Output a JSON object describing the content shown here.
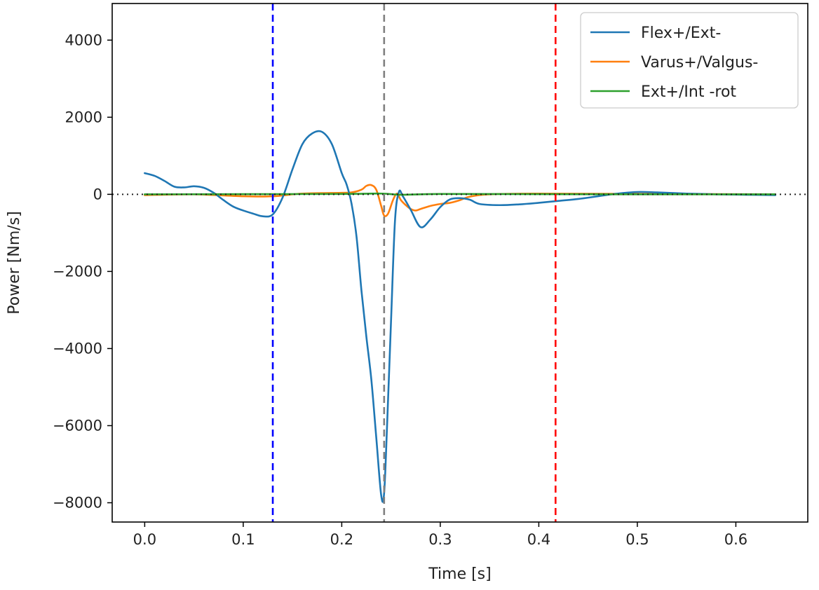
{
  "chart_data": {
    "type": "line",
    "title": "",
    "xlabel": "Time [s]",
    "ylabel": "Power [Nm/s]",
    "xlim": [
      -0.033,
      0.673
    ],
    "ylim": [
      -8500,
      4950
    ],
    "xticks": [
      0.0,
      0.1,
      0.2,
      0.3,
      0.4,
      0.5,
      0.6
    ],
    "xtick_labels": [
      "0.0",
      "0.1",
      "0.2",
      "0.3",
      "0.4",
      "0.5",
      "0.6"
    ],
    "yticks": [
      4000,
      2000,
      0,
      -2000,
      -4000,
      -6000,
      -8000
    ],
    "ytick_labels": [
      "4000",
      "2000",
      "0",
      "−2000",
      "−4000",
      "−6000",
      "−8000"
    ],
    "grid": false,
    "legend_position": "top-right",
    "zero_line": {
      "y": 0,
      "style": "dotted",
      "color": "#222222"
    },
    "vertical_lines": [
      {
        "x": 0.13,
        "color": "#0000ff",
        "style": "dashed"
      },
      {
        "x": 0.243,
        "color": "#808080",
        "style": "dashed"
      },
      {
        "x": 0.417,
        "color": "#ff0000",
        "style": "dashed"
      }
    ],
    "series": [
      {
        "name": "Flex+/Ext-",
        "color": "#1f77b4",
        "x": [
          0.0,
          0.01,
          0.02,
          0.03,
          0.04,
          0.05,
          0.06,
          0.07,
          0.08,
          0.09,
          0.1,
          0.11,
          0.12,
          0.13,
          0.14,
          0.15,
          0.16,
          0.17,
          0.18,
          0.19,
          0.2,
          0.205,
          0.21,
          0.215,
          0.22,
          0.225,
          0.23,
          0.235,
          0.24,
          0.243,
          0.246,
          0.25,
          0.254,
          0.258,
          0.262,
          0.27,
          0.28,
          0.29,
          0.3,
          0.31,
          0.32,
          0.33,
          0.34,
          0.36,
          0.38,
          0.4,
          0.42,
          0.44,
          0.46,
          0.48,
          0.5,
          0.52,
          0.55,
          0.58,
          0.61,
          0.64
        ],
        "y": [
          550,
          480,
          350,
          200,
          180,
          210,
          170,
          40,
          -150,
          -320,
          -420,
          -500,
          -570,
          -520,
          -80,
          650,
          1300,
          1580,
          1620,
          1300,
          550,
          250,
          -250,
          -1100,
          -2500,
          -3700,
          -4800,
          -6300,
          -7800,
          -7750,
          -6000,
          -3300,
          -700,
          60,
          -50,
          -400,
          -850,
          -650,
          -330,
          -130,
          -100,
          -140,
          -250,
          -280,
          -260,
          -220,
          -170,
          -120,
          -50,
          20,
          60,
          50,
          20,
          0,
          -10,
          -20
        ]
      },
      {
        "name": "Varus+/Valgus-",
        "color": "#ff7f0e",
        "x": [
          0.0,
          0.05,
          0.1,
          0.13,
          0.16,
          0.2,
          0.21,
          0.22,
          0.225,
          0.23,
          0.235,
          0.24,
          0.243,
          0.247,
          0.252,
          0.256,
          0.26,
          0.265,
          0.27,
          0.275,
          0.28,
          0.29,
          0.3,
          0.31,
          0.32,
          0.33,
          0.35,
          0.4,
          0.5,
          0.64
        ],
        "y": [
          -20,
          0,
          -50,
          -50,
          20,
          40,
          50,
          120,
          220,
          240,
          120,
          -300,
          -550,
          -500,
          -150,
          20,
          -150,
          -280,
          -380,
          -420,
          -380,
          -300,
          -250,
          -220,
          -150,
          -60,
          0,
          20,
          10,
          0
        ]
      },
      {
        "name": "Ext+/Int -rot",
        "color": "#2ca02c",
        "x": [
          0.0,
          0.1,
          0.2,
          0.24,
          0.26,
          0.3,
          0.4,
          0.5,
          0.64
        ],
        "y": [
          0,
          5,
          10,
          20,
          -10,
          10,
          5,
          0,
          0
        ]
      }
    ]
  }
}
